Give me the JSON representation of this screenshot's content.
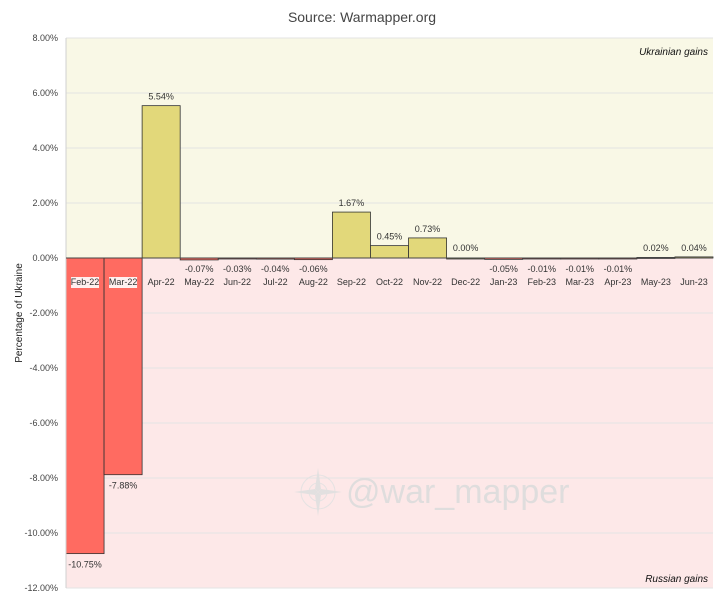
{
  "chart_data": {
    "type": "bar",
    "title": "Source: Warmapper.org",
    "ylabel": "Percentage of Ukraine",
    "xlabel": "",
    "ylim": [
      -12,
      8
    ],
    "yticks": [
      8,
      6,
      4,
      2,
      0,
      -2,
      -4,
      -6,
      -8,
      -10,
      -12
    ],
    "ytick_labels": [
      "8.00%",
      "6.00%",
      "4.00%",
      "2.00%",
      "0.00%",
      "-2.00%",
      "-4.00%",
      "-6.00%",
      "-8.00%",
      "-10.00%",
      "-12.00%"
    ],
    "categories": [
      "Feb-22",
      "Mar-22",
      "Apr-22",
      "May-22",
      "Jun-22",
      "Jul-22",
      "Aug-22",
      "Sep-22",
      "Oct-22",
      "Nov-22",
      "Dec-22",
      "Jan-23",
      "Feb-23",
      "Mar-23",
      "Apr-23",
      "May-23",
      "Jun-23"
    ],
    "values": [
      -10.75,
      -7.88,
      5.54,
      -0.07,
      -0.03,
      -0.04,
      -0.06,
      1.67,
      0.45,
      0.73,
      0.0,
      -0.05,
      -0.01,
      -0.01,
      -0.01,
      0.02,
      0.04
    ],
    "value_labels": [
      "-10.75%",
      "-7.88%",
      "5.54%",
      "-0.07%",
      "-0.03%",
      "-0.04%",
      "-0.06%",
      "1.67%",
      "0.45%",
      "0.73%",
      "0.00%",
      "-0.05%",
      "-0.01%",
      "-0.01%",
      "-0.01%",
      "0.02%",
      "0.04%"
    ],
    "regions": {
      "positive_label": "Ukrainian gains",
      "negative_label": "Russian gains"
    },
    "grid": true,
    "colors": {
      "positive_bar": "#e2d87a",
      "negative_bar": "#ff6b61",
      "positive_bg": "#f9f8e6",
      "negative_bg": "#fde8e8",
      "grid": "#e3e3e3",
      "bar_border": "#333333"
    }
  },
  "watermark": {
    "text": "@war_mapper",
    "icon": "compass-rose-icon"
  }
}
